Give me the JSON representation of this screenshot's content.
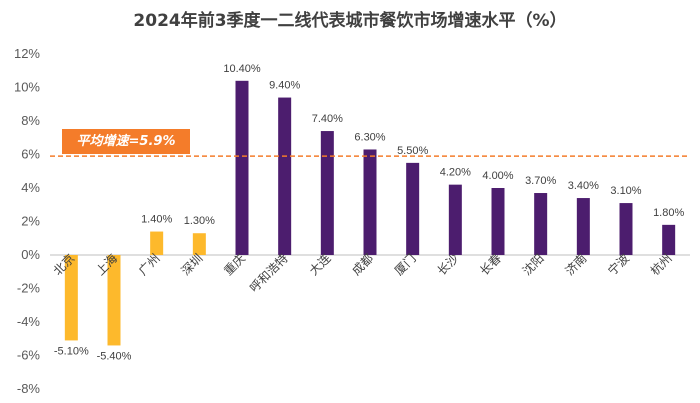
{
  "title": "2024年前3季度一二线代表城市餐饮市场增速水平（%）",
  "average_label": "平均增速=5.9%",
  "colors": {
    "negative": "#fdb92c",
    "tier1": "#fdb92c",
    "tier2": "#4c1d6e",
    "average_line": "#f47c2a",
    "axis": "#bfbfbf"
  },
  "chart_data": {
    "type": "bar",
    "title": "2024年前3季度一二线代表城市餐饮市场增速水平（%）",
    "categories": [
      "北京",
      "上海",
      "广州",
      "深圳",
      "重庆",
      "呼和浩特",
      "大连",
      "成都",
      "厦门",
      "长沙",
      "长春",
      "沈阳",
      "济南",
      "宁波",
      "杭州"
    ],
    "values": [
      -5.1,
      -5.4,
      1.4,
      1.3,
      10.4,
      9.4,
      7.4,
      6.3,
      5.5,
      4.2,
      4.0,
      3.7,
      3.4,
      3.1,
      1.8
    ],
    "data_labels": [
      "-5.10%",
      "-5.40%",
      "1.40%",
      "1.30%",
      "10.40%",
      "9.40%",
      "7.40%",
      "6.30%",
      "5.50%",
      "4.20%",
      "4.00%",
      "3.70%",
      "3.40%",
      "3.10%",
      "1.80%"
    ],
    "bar_groups": [
      "tier1",
      "tier1",
      "tier1",
      "tier1",
      "tier2",
      "tier2",
      "tier2",
      "tier2",
      "tier2",
      "tier2",
      "tier2",
      "tier2",
      "tier2",
      "tier2",
      "tier2"
    ],
    "yticks": [
      "-8%",
      "-6%",
      "-4%",
      "-2%",
      "0%",
      "2%",
      "4%",
      "6%",
      "8%",
      "10%",
      "12%"
    ],
    "ytick_values": [
      -8,
      -6,
      -4,
      -2,
      0,
      2,
      4,
      6,
      8,
      10,
      12
    ],
    "ylim": [
      -8,
      12
    ],
    "average": 5.9,
    "xlabel": "",
    "ylabel": "",
    "grid": false,
    "legend": "none"
  }
}
